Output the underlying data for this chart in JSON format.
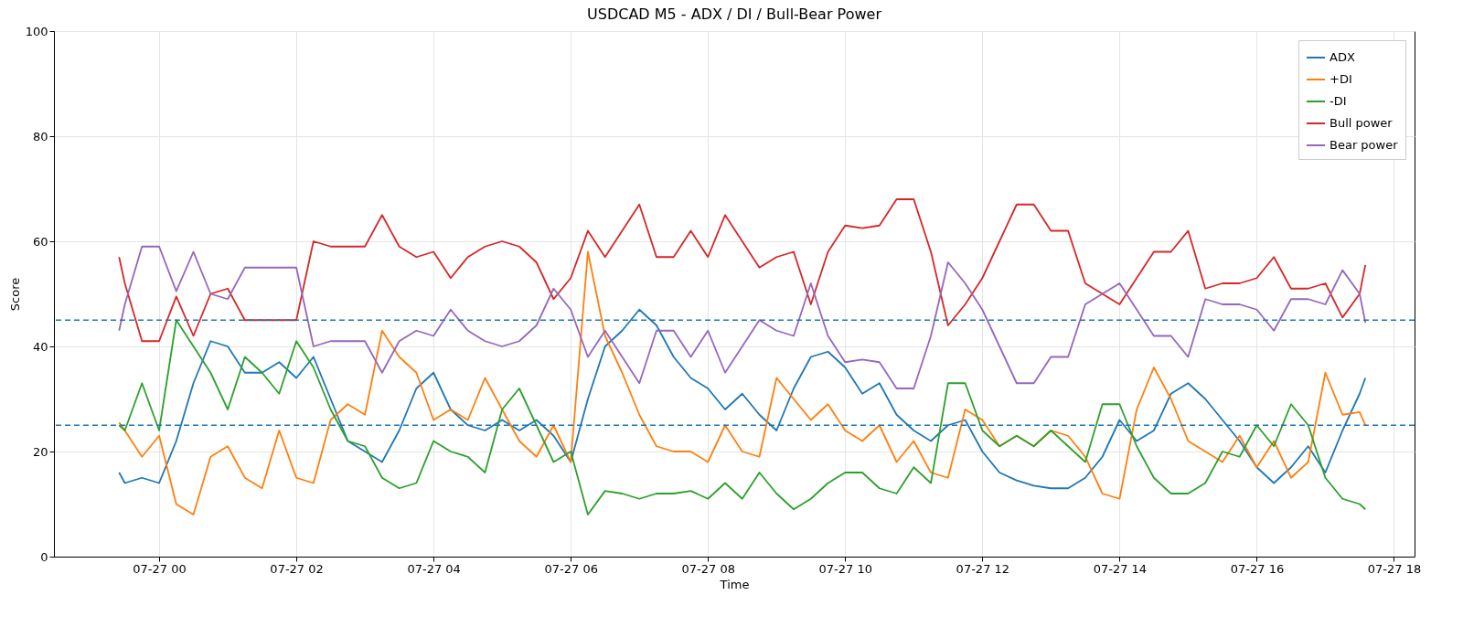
{
  "chart_data": {
    "type": "line",
    "title": "USDCAD M5 - ADX / DI / Bull-Bear Power",
    "xlabel": "Time",
    "ylabel": "Score",
    "x": [
      "--07-26T23:25",
      "--07-26T23:30",
      "--07-26T23:45",
      "--07-27T00:00",
      "--07-27T00:15",
      "--07-27T00:30",
      "--07-27T00:45",
      "--07-27T01:00",
      "--07-27T01:15",
      "--07-27T01:30",
      "--07-27T01:45",
      "--07-27T02:00",
      "--07-27T02:15",
      "--07-27T02:30",
      "--07-27T02:45",
      "--07-27T03:00",
      "--07-27T03:15",
      "--07-27T03:30",
      "--07-27T03:45",
      "--07-27T04:00",
      "--07-27T04:15",
      "--07-27T04:30",
      "--07-27T04:45",
      "--07-27T05:00",
      "--07-27T05:15",
      "--07-27T05:30",
      "--07-27T05:45",
      "--07-27T06:00",
      "--07-27T06:15",
      "--07-27T06:30",
      "--07-27T06:45",
      "--07-27T07:00",
      "--07-27T07:15",
      "--07-27T07:30",
      "--07-27T07:45",
      "--07-27T08:00",
      "--07-27T08:15",
      "--07-27T08:30",
      "--07-27T08:45",
      "--07-27T09:00",
      "--07-27T09:15",
      "--07-27T09:30",
      "--07-27T09:45",
      "--07-27T10:00",
      "--07-27T10:15",
      "--07-27T10:30",
      "--07-27T10:45",
      "--07-27T11:00",
      "--07-27T11:15",
      "--07-27T11:30",
      "--07-27T11:45",
      "--07-27T12:00",
      "--07-27T12:15",
      "--07-27T12:30",
      "--07-27T12:45",
      "--07-27T13:00",
      "--07-27T13:15",
      "--07-27T13:30",
      "--07-27T13:45",
      "--07-27T14:00",
      "--07-27T14:15",
      "--07-27T14:30",
      "--07-27T14:45",
      "--07-27T15:00",
      "--07-27T15:15",
      "--07-27T15:30",
      "--07-27T15:45",
      "--07-27T16:00",
      "--07-27T16:15",
      "--07-27T16:30",
      "--07-27T16:45",
      "--07-27T17:00",
      "--07-27T17:15",
      "--07-27T17:30",
      "--07-27T17:35"
    ],
    "series": [
      {
        "name": "ADX",
        "color": "#1f77b4",
        "values": [
          16,
          14,
          15,
          14,
          22,
          33,
          41,
          40,
          35,
          35,
          37,
          34,
          38,
          30,
          22,
          20,
          18,
          24,
          32,
          35,
          28,
          25,
          24,
          26,
          24,
          26,
          23,
          18,
          30,
          40,
          43,
          47,
          44,
          38,
          34,
          32,
          28,
          31,
          27,
          24,
          32,
          38,
          39,
          36,
          31,
          33,
          27,
          24,
          22,
          25,
          26,
          20,
          16,
          14.5,
          13.5,
          13,
          13,
          15,
          19,
          26,
          22,
          24,
          31,
          33,
          30,
          26,
          22,
          17,
          14,
          17,
          21,
          16,
          24,
          31,
          34
        ]
      },
      {
        "name": "+DI",
        "color": "#ff7f0e",
        "values": [
          25.5,
          24,
          19,
          23,
          10,
          8,
          19,
          21,
          15,
          13,
          24,
          15,
          14,
          26,
          29,
          27,
          43,
          38,
          35,
          26,
          28,
          26,
          34,
          28,
          22,
          19,
          25,
          18,
          58,
          42,
          35,
          27,
          21,
          20,
          20,
          18,
          25,
          20,
          19,
          34,
          30,
          26,
          29,
          24,
          22,
          25,
          18,
          22,
          16,
          15,
          28,
          26,
          21,
          23,
          21,
          24,
          23,
          19,
          12,
          11,
          28,
          36,
          30,
          22,
          20,
          18,
          23,
          17,
          22,
          15,
          18,
          35,
          27,
          27.5,
          25
        ]
      },
      {
        "name": "-DI",
        "color": "#2ca02c",
        "values": [
          25,
          24,
          33,
          24,
          45,
          40,
          35,
          28,
          38,
          35,
          31,
          41,
          36,
          28,
          22,
          21,
          15,
          13,
          14,
          22,
          20,
          19,
          16,
          28,
          32,
          25,
          18,
          20,
          8,
          12.5,
          12,
          11,
          12,
          12,
          12.5,
          11,
          14,
          11,
          16,
          12,
          9,
          11,
          14,
          16,
          16,
          13,
          12,
          17,
          14,
          33,
          33,
          24,
          21,
          23,
          21,
          24,
          21,
          18,
          29,
          29,
          21,
          15,
          12,
          12,
          14,
          20,
          19,
          25,
          21,
          29,
          25,
          15,
          11,
          10,
          9
        ]
      },
      {
        "name": "Bull power",
        "color": "#d62728",
        "values": [
          57,
          52,
          41,
          41,
          49.5,
          42,
          50,
          51,
          45,
          45,
          45,
          45,
          60,
          59,
          59,
          59,
          65,
          59,
          57,
          58,
          53,
          57,
          59,
          60,
          59,
          56,
          49,
          53,
          62,
          57,
          62,
          67,
          57,
          57,
          62,
          57,
          65,
          60,
          55,
          57,
          58,
          48,
          58,
          63,
          62.5,
          63,
          68,
          68,
          58,
          44,
          48,
          53,
          60,
          67,
          67,
          62,
          62,
          52,
          50,
          48,
          53,
          58,
          58,
          62,
          51,
          52,
          52,
          53,
          57,
          51,
          51,
          52,
          45.5,
          50,
          55.5
        ]
      },
      {
        "name": "Bear power",
        "color": "#9467bd",
        "values": [
          43,
          48,
          59,
          59,
          50.5,
          58,
          50,
          49,
          55,
          55,
          55,
          55,
          40,
          41,
          41,
          41,
          35,
          41,
          43,
          42,
          47,
          43,
          41,
          40,
          41,
          44,
          51,
          47,
          38,
          43,
          38,
          33,
          43,
          43,
          38,
          43,
          35,
          40,
          45,
          43,
          42,
          52,
          42,
          37,
          37.5,
          37,
          32,
          32,
          42,
          56,
          52,
          47,
          40,
          33,
          33,
          38,
          38,
          48,
          50,
          52,
          47,
          42,
          42,
          38,
          49,
          48,
          48,
          47,
          43,
          49,
          49,
          48,
          54.5,
          50,
          44.5
        ]
      }
    ],
    "ref_lines": [
      {
        "axis": "y",
        "value": 25,
        "color": "#1f77b4",
        "line_style": "dashed"
      },
      {
        "axis": "y",
        "value": 45,
        "color": "#1f77b4",
        "line_style": "dashed"
      }
    ],
    "xlim": [
      "--07-26T22:28",
      "--07-27T18:18"
    ],
    "xticks": [
      {
        "value": "--07-27T00:00",
        "label": "07-27 00"
      },
      {
        "value": "--07-27T02:00",
        "label": "07-27 02"
      },
      {
        "value": "--07-27T04:00",
        "label": "07-27 04"
      },
      {
        "value": "--07-27T06:00",
        "label": "07-27 06"
      },
      {
        "value": "--07-27T08:00",
        "label": "07-27 08"
      },
      {
        "value": "--07-27T10:00",
        "label": "07-27 10"
      },
      {
        "value": "--07-27T12:00",
        "label": "07-27 12"
      },
      {
        "value": "--07-27T14:00",
        "label": "07-27 14"
      },
      {
        "value": "--07-27T16:00",
        "label": "07-27 16"
      },
      {
        "value": "--07-27T18:00",
        "label": "07-27 18"
      }
    ],
    "ylim": [
      0,
      100
    ],
    "yticks": [
      0,
      20,
      40,
      60,
      80,
      100
    ],
    "grid": true,
    "legend": "top right",
    "line_style": "solid"
  }
}
